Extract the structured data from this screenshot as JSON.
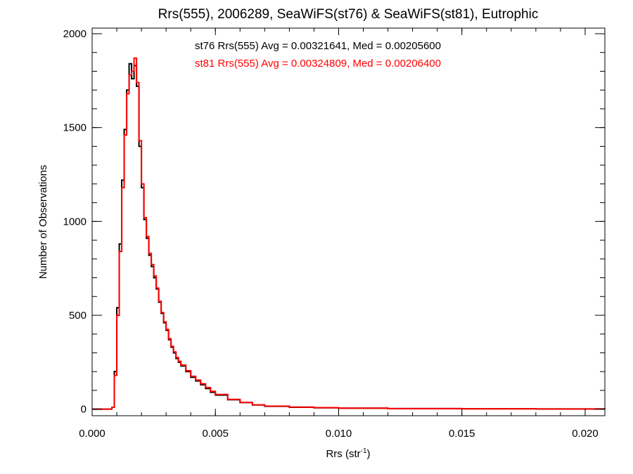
{
  "chart_data": {
    "type": "line",
    "title": "Rrs(555), 2006289, SeaWiFS(st76) & SeaWiFS(st81), Eutrophic",
    "xlabel_main": "Rrs (str",
    "xlabel_sup": "-1",
    "xlabel_close": ")",
    "ylabel": "Number of Observations",
    "xlim": [
      0.0,
      0.0208
    ],
    "ylim": [
      -35,
      2030
    ],
    "x_ticks": [
      {
        "value": 0.0,
        "label": "0.000"
      },
      {
        "value": 0.005,
        "label": "0.005"
      },
      {
        "value": 0.01,
        "label": "0.010"
      },
      {
        "value": 0.015,
        "label": "0.015"
      },
      {
        "value": 0.02,
        "label": "0.020"
      }
    ],
    "y_ticks": [
      {
        "value": 0,
        "label": "0"
      },
      {
        "value": 500,
        "label": "500"
      },
      {
        "value": 1000,
        "label": "1000"
      },
      {
        "value": 1500,
        "label": "1500"
      },
      {
        "value": 2000,
        "label": "2000"
      }
    ],
    "annotations": [
      {
        "text": "st76 Rrs(555) Avg = 0.00321641, Med = 0.00205600",
        "color": "#000000"
      },
      {
        "text": "st81 Rrs(555) Avg = 0.00324809, Med = 0.00206400",
        "color": "#ff0000"
      }
    ],
    "grid": false,
    "series": [
      {
        "color": "#000000",
        "x": [
          0.0,
          0.0008,
          0.0009,
          0.001,
          0.0011,
          0.0012,
          0.0013,
          0.0014,
          0.0015,
          0.0016,
          0.0017,
          0.0018,
          0.0019,
          0.002,
          0.0021,
          0.0022,
          0.0023,
          0.0024,
          0.0025,
          0.0026,
          0.0027,
          0.0028,
          0.0029,
          0.003,
          0.0031,
          0.0032,
          0.0033,
          0.0034,
          0.0035,
          0.0036,
          0.0038,
          0.004,
          0.0042,
          0.0044,
          0.0046,
          0.0048,
          0.005,
          0.0055,
          0.006,
          0.0065,
          0.007,
          0.008,
          0.009,
          0.01,
          0.012,
          0.015,
          0.018,
          0.0208
        ],
        "y": [
          0,
          10,
          200,
          540,
          880,
          1220,
          1490,
          1700,
          1840,
          1760,
          1830,
          1720,
          1400,
          1180,
          1010,
          910,
          820,
          760,
          700,
          640,
          570,
          510,
          460,
          420,
          370,
          330,
          300,
          270,
          250,
          230,
          200,
          170,
          150,
          130,
          110,
          90,
          75,
          50,
          35,
          22,
          15,
          10,
          7,
          5,
          3,
          2,
          1,
          0
        ]
      },
      {
        "color": "#ff0000",
        "x": [
          0.0,
          0.0008,
          0.0009,
          0.001,
          0.0011,
          0.0012,
          0.0013,
          0.0014,
          0.0015,
          0.0016,
          0.0017,
          0.0018,
          0.0019,
          0.002,
          0.0021,
          0.0022,
          0.0023,
          0.0024,
          0.0025,
          0.0026,
          0.0027,
          0.0028,
          0.0029,
          0.003,
          0.0031,
          0.0032,
          0.0033,
          0.0034,
          0.0035,
          0.0036,
          0.0038,
          0.004,
          0.0042,
          0.0044,
          0.0046,
          0.0048,
          0.005,
          0.0055,
          0.006,
          0.0065,
          0.007,
          0.008,
          0.009,
          0.01,
          0.012,
          0.015,
          0.018,
          0.0208
        ],
        "y": [
          0,
          10,
          180,
          500,
          840,
          1180,
          1460,
          1680,
          1780,
          1800,
          1870,
          1740,
          1430,
          1200,
          1020,
          920,
          830,
          770,
          710,
          645,
          575,
          515,
          465,
          425,
          375,
          335,
          305,
          275,
          255,
          235,
          205,
          175,
          155,
          135,
          115,
          95,
          78,
          52,
          36,
          23,
          16,
          11,
          8,
          5,
          3,
          2,
          1,
          0
        ]
      }
    ]
  }
}
